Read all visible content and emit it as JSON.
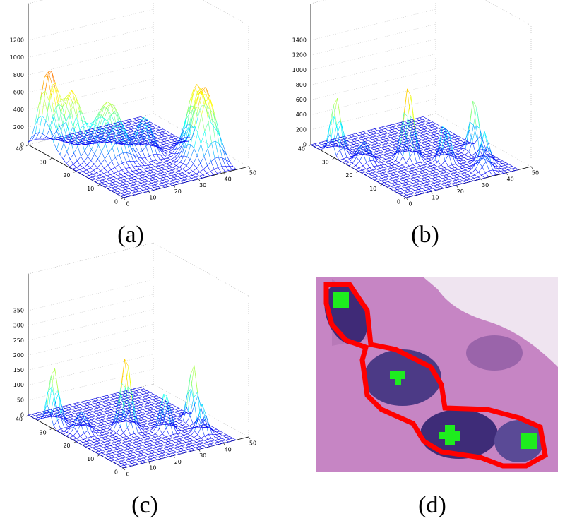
{
  "panels": [
    {
      "label": "(a)",
      "zticks": [
        0,
        200,
        400,
        600,
        800,
        1000,
        1200
      ],
      "xticks": [
        0,
        10,
        20,
        30,
        40,
        50
      ],
      "yticks": [
        0,
        10,
        20,
        30,
        40
      ]
    },
    {
      "label": "(b)",
      "zticks": [
        0,
        200,
        400,
        600,
        800,
        1000,
        1200,
        1400
      ],
      "xticks": [
        0,
        10,
        20,
        30,
        40,
        50
      ],
      "yticks": [
        0,
        10,
        20,
        30,
        40
      ]
    },
    {
      "label": "(c)",
      "zticks": [
        0,
        50,
        100,
        150,
        200,
        250,
        300,
        350
      ],
      "xticks": [
        0,
        10,
        20,
        30,
        40,
        50
      ],
      "yticks": [
        0,
        10,
        20,
        30,
        40
      ]
    },
    {
      "label": "(d)"
    }
  ]
}
